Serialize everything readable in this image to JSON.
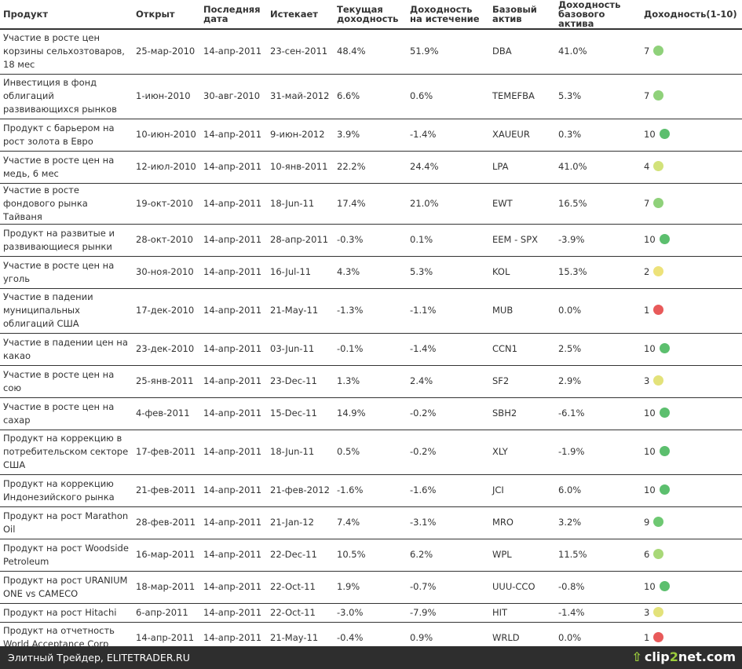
{
  "headers": [
    "Продукт",
    "Открыт",
    "Последняя дата",
    "Истекает",
    "Текущая доходность",
    "Доходность на истечение",
    "Базовый актив",
    "Доходность базового актива",
    "Доходность(1-10)"
  ],
  "rows": [
    {
      "product": "Участие в росте цен корзины сельхозтоваров, 18 мес",
      "opened": "25-мар-2010",
      "last": "14-апр-2011",
      "expires": "23-сен-2011",
      "current": "48.4%",
      "expiry_yield": "51.9%",
      "asset": "DBA",
      "asset_yield": "41.0%",
      "score": "7",
      "color": "#8fd17a"
    },
    {
      "product": "Инвестиция в фонд облигаций развивающихся рынков",
      "opened": "1-июн-2010",
      "last": "30-авг-2010",
      "expires": "31-май-2012",
      "current": "6.6%",
      "expiry_yield": "0.6%",
      "asset": "TEMEFBA",
      "asset_yield": "5.3%",
      "score": "7",
      "color": "#8fd17a"
    },
    {
      "product": "Продукт с барьером на рост золота в Евро",
      "opened": "10-июн-2010",
      "last": "14-апр-2011",
      "expires": "9-июн-2012",
      "current": "3.9%",
      "expiry_yield": "-1.4%",
      "asset": "XAUEUR",
      "asset_yield": "0.3%",
      "score": "10",
      "color": "#5cbf6e"
    },
    {
      "product": "Участие в росте цен на медь, 6 мес",
      "opened": "12-июл-2010",
      "last": "14-апр-2011",
      "expires": "10-янв-2011",
      "current": "22.2%",
      "expiry_yield": "24.4%",
      "asset": "LPA",
      "asset_yield": "41.0%",
      "score": "4",
      "color": "#d2e27a"
    },
    {
      "product": "Участие в росте фондового рынка Тайваня",
      "opened": "19-окт-2010",
      "last": "14-апр-2011",
      "expires": "18-Jun-11",
      "current": "17.4%",
      "expiry_yield": "21.0%",
      "asset": "EWT",
      "asset_yield": "16.5%",
      "score": "7",
      "color": "#8fd17a"
    },
    {
      "product": "Продукт на развитые и развивающиеся рынки",
      "opened": "28-окт-2010",
      "last": "14-апр-2011",
      "expires": "28-апр-2011",
      "current": "-0.3%",
      "expiry_yield": "0.1%",
      "asset": "EEM - SPX",
      "asset_yield": "-3.9%",
      "score": "10",
      "color": "#5cbf6e"
    },
    {
      "product": "Участие в росте цен на уголь",
      "opened": "30-ноя-2010",
      "last": "14-апр-2011",
      "expires": "16-Jul-11",
      "current": "4.3%",
      "expiry_yield": "5.3%",
      "asset": "KOL",
      "asset_yield": "15.3%",
      "score": "2",
      "color": "#ede27a"
    },
    {
      "product": "Участие в падении муниципальных облигаций США",
      "opened": "17-дек-2010",
      "last": "14-апр-2011",
      "expires": "21-May-11",
      "current": "-1.3%",
      "expiry_yield": "-1.1%",
      "asset": "MUB",
      "asset_yield": "0.0%",
      "score": "1",
      "color": "#e85a5a"
    },
    {
      "product": "Участие в падении цен на какао",
      "opened": "23-дек-2010",
      "last": "14-апр-2011",
      "expires": "03-Jun-11",
      "current": "-0.1%",
      "expiry_yield": "-1.4%",
      "asset": "CCN1",
      "asset_yield": "2.5%",
      "score": "10",
      "color": "#5cbf6e"
    },
    {
      "product": "Участие в росте цен на сою",
      "opened": "25-янв-2011",
      "last": "14-апр-2011",
      "expires": "23-Dec-11",
      "current": "1.3%",
      "expiry_yield": "2.4%",
      "asset": "SF2",
      "asset_yield": "2.9%",
      "score": "3",
      "color": "#e3e27a"
    },
    {
      "product": "Участие в росте цен на сахар",
      "opened": "4-фев-2011",
      "last": "14-апр-2011",
      "expires": "15-Dec-11",
      "current": "14.9%",
      "expiry_yield": "-0.2%",
      "asset": "SBH2",
      "asset_yield": "-6.1%",
      "score": "10",
      "color": "#5cbf6e"
    },
    {
      "product": "Продукт на коррекцию в потребительском секторе США",
      "opened": "17-фев-2011",
      "last": "14-апр-2011",
      "expires": "18-Jun-11",
      "current": "0.5%",
      "expiry_yield": "-0.2%",
      "asset": "XLY",
      "asset_yield": "-1.9%",
      "score": "10",
      "color": "#5cbf6e"
    },
    {
      "product": "Продукт на коррекцию Индонезийского рынка",
      "opened": "21-фев-2011",
      "last": "14-апр-2011",
      "expires": "21-фев-2012",
      "current": "-1.6%",
      "expiry_yield": "-1.6%",
      "asset": "JCI",
      "asset_yield": "6.0%",
      "score": "10",
      "color": "#5cbf6e"
    },
    {
      "product": "Продукт на рост Marathon Oil",
      "opened": "28-фев-2011",
      "last": "14-апр-2011",
      "expires": "21-Jan-12",
      "current": "7.4%",
      "expiry_yield": "-3.1%",
      "asset": "MRO",
      "asset_yield": "3.2%",
      "score": "9",
      "color": "#6ec872"
    },
    {
      "product": "Продукт на рост Woodside Petroleum",
      "opened": "16-мар-2011",
      "last": "14-апр-2011",
      "expires": "22-Dec-11",
      "current": "10.5%",
      "expiry_yield": "6.2%",
      "asset": "WPL",
      "asset_yield": "11.5%",
      "score": "6",
      "color": "#a8d878"
    },
    {
      "product": "Продукт на рост URANIUM ONE vs CAMECO",
      "opened": "18-мар-2011",
      "last": "14-апр-2011",
      "expires": "22-Oct-11",
      "current": "1.9%",
      "expiry_yield": "-0.7%",
      "asset": "UUU-CCO",
      "asset_yield": "-0.8%",
      "score": "10",
      "color": "#5cbf6e"
    },
    {
      "product": "Продукт на рост Hitachi",
      "opened": "6-апр-2011",
      "last": "14-апр-2011",
      "expires": "22-Oct-11",
      "current": "-3.0%",
      "expiry_yield": "-7.9%",
      "asset": "HIT",
      "asset_yield": "-1.4%",
      "score": "3",
      "color": "#e3e27a"
    },
    {
      "product": "Продукт на отчетность World Acceptance Corp",
      "opened": "14-апр-2011",
      "last": "14-апр-2011",
      "expires": "21-May-11",
      "current": "-0.4%",
      "expiry_yield": "0.9%",
      "asset": "WRLD",
      "asset_yield": "0.0%",
      "score": "1",
      "color": "#e85a5a"
    }
  ],
  "footer": {
    "left_text": "Элитный Трейдер, ELITETRADER.RU",
    "logo_arrow": "⇧",
    "logo_part1": "clip",
    "logo_part2": "2",
    "logo_part3": "net.com"
  }
}
